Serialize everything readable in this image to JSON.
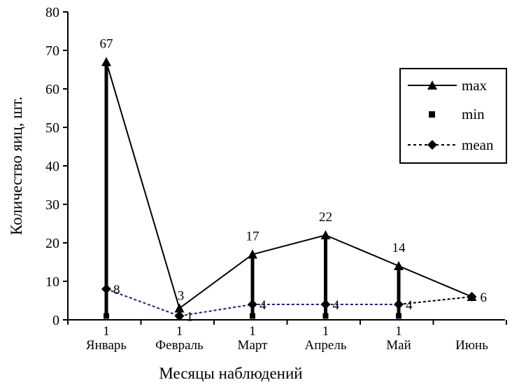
{
  "chart_data": {
    "type": "line",
    "categories": [
      "Январь",
      "Февраль",
      "Март",
      "Апрель",
      "Май",
      "Июнь"
    ],
    "xlabel": "Месяцы наблюдений",
    "ylabel": "Количество яиц, шт.",
    "ylim": [
      0,
      80
    ],
    "yticks": [
      "0",
      "10",
      "20",
      "30",
      "40",
      "50",
      "60",
      "70",
      "80"
    ],
    "grid": false,
    "legend_position": "right",
    "series": [
      {
        "name": "max",
        "values": [
          67,
          3,
          17,
          22,
          14,
          6
        ],
        "labels": [
          "67",
          "3",
          "17",
          "22",
          "14",
          ""
        ],
        "color": "#000000"
      },
      {
        "name": "min",
        "values": [
          1,
          1,
          1,
          1,
          1,
          null
        ],
        "labels": [
          "1",
          "1",
          "1",
          "1",
          "1",
          ""
        ],
        "color": "#000000"
      },
      {
        "name": "mean",
        "values": [
          8,
          1,
          4,
          4,
          4,
          6
        ],
        "labels": [
          "8",
          "1",
          "4",
          "4",
          "4",
          "6"
        ],
        "color": "#1a237e"
      }
    ]
  }
}
